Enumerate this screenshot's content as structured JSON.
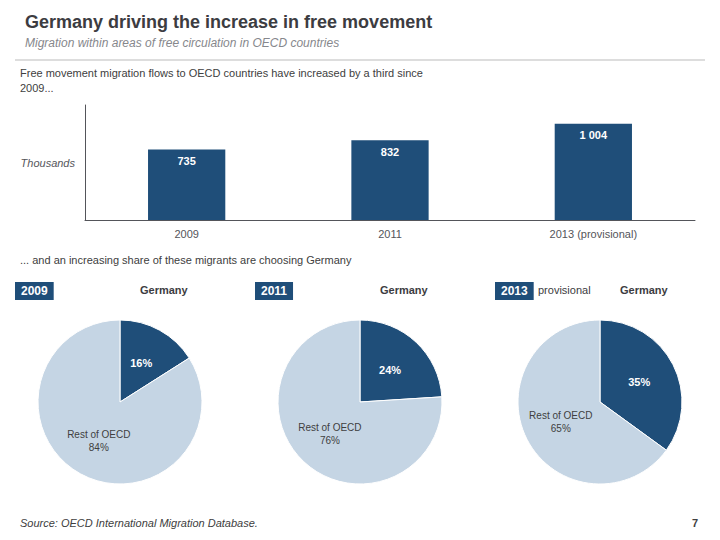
{
  "chart_data": [
    {
      "type": "bar",
      "title": "Germany driving the increase in free movement",
      "subtitle": "Migration within areas of free circulation in OECD countries",
      "annotations": [
        "Free movement migration flows to OECD countries have increased by a third since",
        "2009...",
        "... and an increasing share of these migrants are choosing Germany",
        "Source: OECD International Migration Database.",
        "7"
      ],
      "categories": [
        "2009",
        "2011",
        "2013 (provisional)"
      ],
      "values": [
        735,
        832,
        1004
      ],
      "value_labels": [
        "735",
        "832",
        "1 004"
      ],
      "data_labels": true,
      "color": "#1F4E79",
      "ylabel": "Thousands",
      "ylim": [
        0,
        1200
      ],
      "tick_labels": "x",
      "grid": false
    },
    {
      "type": "pie",
      "title": "2009",
      "categories": [
        "Germany",
        "Rest of OECD"
      ],
      "values": [
        16,
        84
      ],
      "value_labels": [
        "16%",
        "84%"
      ],
      "colors": [
        "#1F4E79",
        "#C5D5E4"
      ],
      "data_labels": true
    },
    {
      "type": "pie",
      "title": "2011",
      "categories": [
        "Germany",
        "Rest of OECD"
      ],
      "values": [
        24,
        76
      ],
      "value_labels": [
        "24%",
        "76%"
      ],
      "colors": [
        "#1F4E79",
        "#C5D5E4"
      ],
      "data_labels": true
    },
    {
      "type": "pie",
      "title": "2013",
      "subtitle": "provisional",
      "categories": [
        "Germany",
        "Rest of OECD"
      ],
      "values": [
        35,
        65
      ],
      "value_labels": [
        "35%",
        "65%"
      ],
      "colors": [
        "#1F4E79",
        "#C5D5E4"
      ],
      "data_labels": true
    }
  ]
}
